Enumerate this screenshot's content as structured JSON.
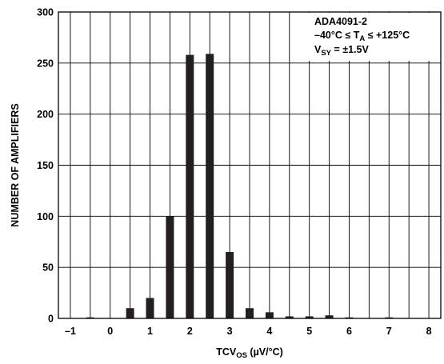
{
  "chart_data": {
    "type": "bar",
    "x": [
      -1,
      -0.5,
      0,
      0.5,
      1,
      1.5,
      2,
      2.5,
      3,
      3.5,
      4,
      4.5,
      5,
      5.5,
      6,
      6.5,
      7,
      7.5,
      8
    ],
    "values": [
      0,
      1,
      0,
      10,
      20,
      100,
      258,
      259,
      65,
      10,
      6,
      2,
      2,
      3,
      1,
      0,
      1,
      0,
      0
    ],
    "xlim": [
      -1.3,
      8.3
    ],
    "ylim": [
      0,
      300
    ],
    "xticks": [
      -1,
      0,
      1,
      2,
      3,
      4,
      5,
      6,
      7,
      8
    ],
    "xtick_labels": [
      "–1",
      "0",
      "1",
      "2",
      "3",
      "4",
      "5",
      "6",
      "7",
      "8"
    ],
    "yticks": [
      0,
      50,
      100,
      150,
      200,
      250,
      300
    ],
    "ytick_labels": [
      "0",
      "50",
      "100",
      "150",
      "200",
      "250",
      "300"
    ],
    "xlabel": {
      "main": "TCV",
      "sub": "OS",
      "tail": " (µV/°C)"
    },
    "ylabel": "NUMBER OF AMPLIFIERS",
    "grid": true,
    "bar_color": "#231f20",
    "annotation": {
      "line1": "ADA4091-2",
      "line2_pre": "–40°C ≤ T",
      "line2_sub": "A",
      "line2_post": " ≤ +125°C",
      "line3_pre": "V",
      "line3_sub": "SY",
      "line3_post": " = ±1.5V",
      "position": "top-right"
    }
  }
}
